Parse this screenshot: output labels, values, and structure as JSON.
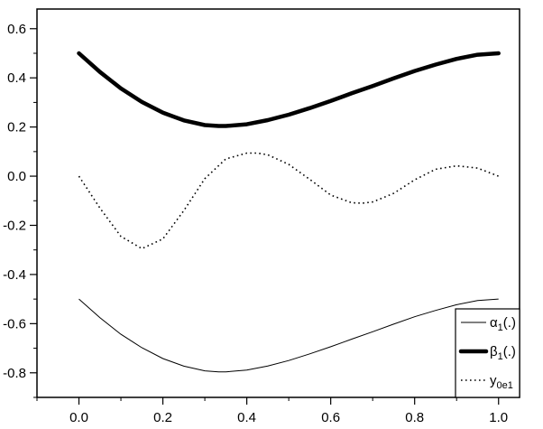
{
  "chart_data": {
    "type": "line",
    "title": "",
    "xlabel": "",
    "ylabel": "",
    "xlim": [
      -0.1,
      1.05
    ],
    "ylim": [
      -0.9,
      0.68
    ],
    "xticks": [
      "0.0",
      "0.2",
      "0.4",
      "0.6",
      "0.8",
      "1.0"
    ],
    "xtick_values": [
      0,
      0.2,
      0.4,
      0.6,
      0.8,
      1.0
    ],
    "yticks": [
      "-0.8",
      "-0.6",
      "-0.4",
      "-0.2",
      "0.0",
      "0.2",
      "0.4",
      "0.6"
    ],
    "ytick_values": [
      -0.8,
      -0.6,
      -0.4,
      -0.2,
      0.0,
      0.2,
      0.4,
      0.6
    ],
    "grid": false,
    "legend_position": "bottom-right",
    "series": [
      {
        "key": "alpha",
        "legend": {
          "base": "α",
          "sub": "1",
          "suffix": "(.)"
        },
        "style": "thin-solid",
        "color": "#000000",
        "x": [
          0.0,
          0.05,
          0.1,
          0.15,
          0.2,
          0.25,
          0.3,
          0.333,
          0.35,
          0.4,
          0.45,
          0.5,
          0.55,
          0.6,
          0.65,
          0.7,
          0.75,
          0.8,
          0.85,
          0.9,
          0.95,
          1.0
        ],
        "values": [
          -0.5,
          -0.576,
          -0.643,
          -0.698,
          -0.742,
          -0.773,
          -0.792,
          -0.796,
          -0.796,
          -0.789,
          -0.772,
          -0.75,
          -0.723,
          -0.694,
          -0.663,
          -0.633,
          -0.602,
          -0.572,
          -0.546,
          -0.523,
          -0.506,
          -0.5
        ]
      },
      {
        "key": "beta",
        "legend": {
          "base": "β",
          "sub": "1",
          "suffix": "(.)"
        },
        "style": "thick-solid",
        "color": "#000000",
        "x": [
          0.0,
          0.05,
          0.1,
          0.15,
          0.2,
          0.25,
          0.3,
          0.333,
          0.35,
          0.4,
          0.45,
          0.5,
          0.55,
          0.6,
          0.65,
          0.7,
          0.75,
          0.8,
          0.85,
          0.9,
          0.95,
          1.0
        ],
        "values": [
          0.5,
          0.424,
          0.357,
          0.302,
          0.258,
          0.227,
          0.208,
          0.204,
          0.204,
          0.211,
          0.228,
          0.25,
          0.277,
          0.306,
          0.337,
          0.367,
          0.398,
          0.428,
          0.454,
          0.477,
          0.494,
          0.5
        ]
      },
      {
        "key": "y",
        "legend": {
          "base": "y",
          "sub": "0e1",
          "suffix": ""
        },
        "style": "dotted",
        "color": "#000000",
        "x": [
          0.0,
          0.05,
          0.1,
          0.15,
          0.2,
          0.25,
          0.3,
          0.35,
          0.4,
          0.425,
          0.45,
          0.5,
          0.55,
          0.6,
          0.65,
          0.675,
          0.7,
          0.75,
          0.8,
          0.85,
          0.9,
          0.95,
          1.0
        ],
        "values": [
          0.0,
          -0.13,
          -0.245,
          -0.295,
          -0.255,
          -0.14,
          -0.01,
          0.07,
          0.094,
          0.094,
          0.087,
          0.048,
          -0.013,
          -0.077,
          -0.108,
          -0.11,
          -0.105,
          -0.07,
          -0.015,
          0.028,
          0.042,
          0.033,
          0.0
        ]
      }
    ]
  }
}
